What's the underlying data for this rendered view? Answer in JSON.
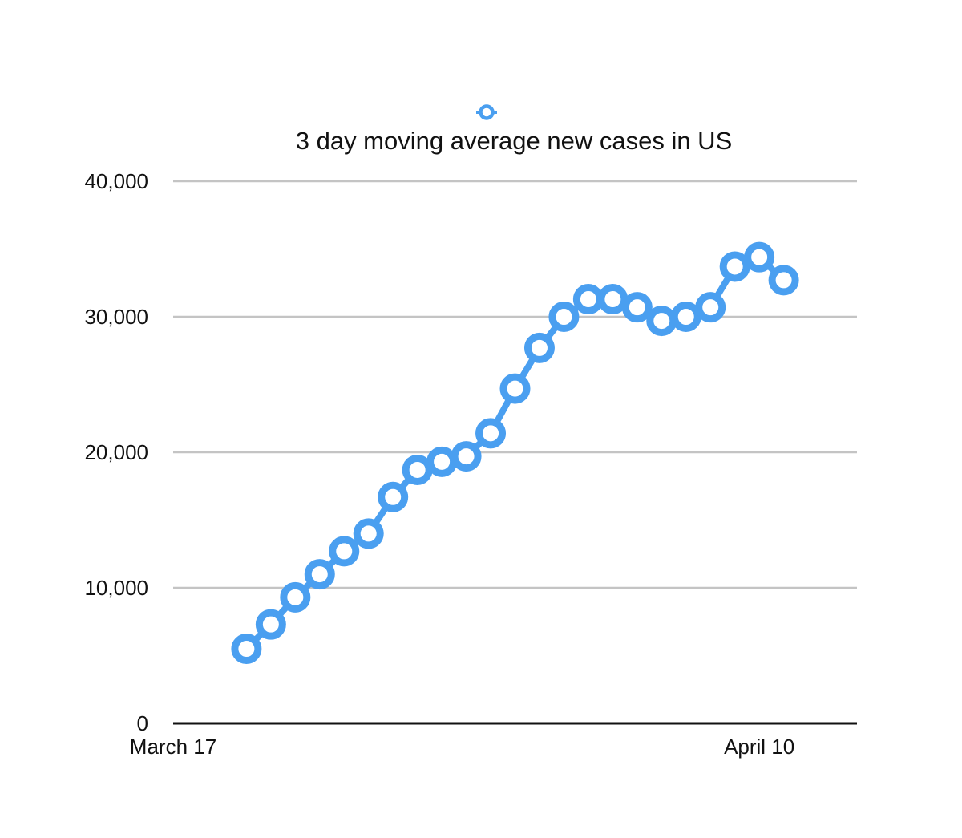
{
  "chart_data": {
    "type": "line",
    "title": "3 day moving average new cases in US",
    "legend": {
      "placement": "top-center",
      "entries": [
        ""
      ]
    },
    "xlabel": "",
    "ylabel": "",
    "ylim": [
      0,
      40000
    ],
    "y_ticks": [
      0,
      10000,
      20000,
      30000,
      40000
    ],
    "y_tick_labels": [
      "0",
      "10,000",
      "20,000",
      "30,000",
      "40,000"
    ],
    "x": [
      "March 17",
      "March 18",
      "March 19",
      "March 20",
      "March 21",
      "March 22",
      "March 23",
      "March 24",
      "March 25",
      "March 26",
      "March 27",
      "March 28",
      "March 29",
      "March 30",
      "March 31",
      "April 1",
      "April 2",
      "April 3",
      "April 4",
      "April 5",
      "April 6",
      "April 7",
      "April 8",
      "April 9",
      "April 10",
      "April 11",
      "April 12",
      "April 13",
      "April 14"
    ],
    "x_tick_labels": [
      {
        "x": "March 17",
        "label": "March 17"
      },
      {
        "x": "April 10",
        "label": "April 10"
      }
    ],
    "grid": true,
    "series": [
      {
        "name": "",
        "color": "#4a9ff0",
        "points": [
          {
            "x": "March 20",
            "y": 5500
          },
          {
            "x": "March 21",
            "y": 7300
          },
          {
            "x": "March 22",
            "y": 9300
          },
          {
            "x": "March 23",
            "y": 11000
          },
          {
            "x": "March 24",
            "y": 12700
          },
          {
            "x": "March 25",
            "y": 14000
          },
          {
            "x": "March 26",
            "y": 16700
          },
          {
            "x": "March 27",
            "y": 18700
          },
          {
            "x": "March 28",
            "y": 19300
          },
          {
            "x": "March 29",
            "y": 19700
          },
          {
            "x": "March 30",
            "y": 21400
          },
          {
            "x": "March 31",
            "y": 24700
          },
          {
            "x": "April 1",
            "y": 27700
          },
          {
            "x": "April 2",
            "y": 30000
          },
          {
            "x": "April 3",
            "y": 31300
          },
          {
            "x": "April 4",
            "y": 31300
          },
          {
            "x": "April 5",
            "y": 30700
          },
          {
            "x": "April 6",
            "y": 29700
          },
          {
            "x": "April 7",
            "y": 30000
          },
          {
            "x": "April 8",
            "y": 30700
          },
          {
            "x": "April 9",
            "y": 33700
          },
          {
            "x": "April 10",
            "y": 34400
          },
          {
            "x": "April 11",
            "y": 32700
          }
        ]
      }
    ],
    "colors": {
      "series": "#4a9ff0",
      "grid": "#c4c4c4",
      "axis": "#111111",
      "marker_fill": "#ffffff"
    }
  }
}
